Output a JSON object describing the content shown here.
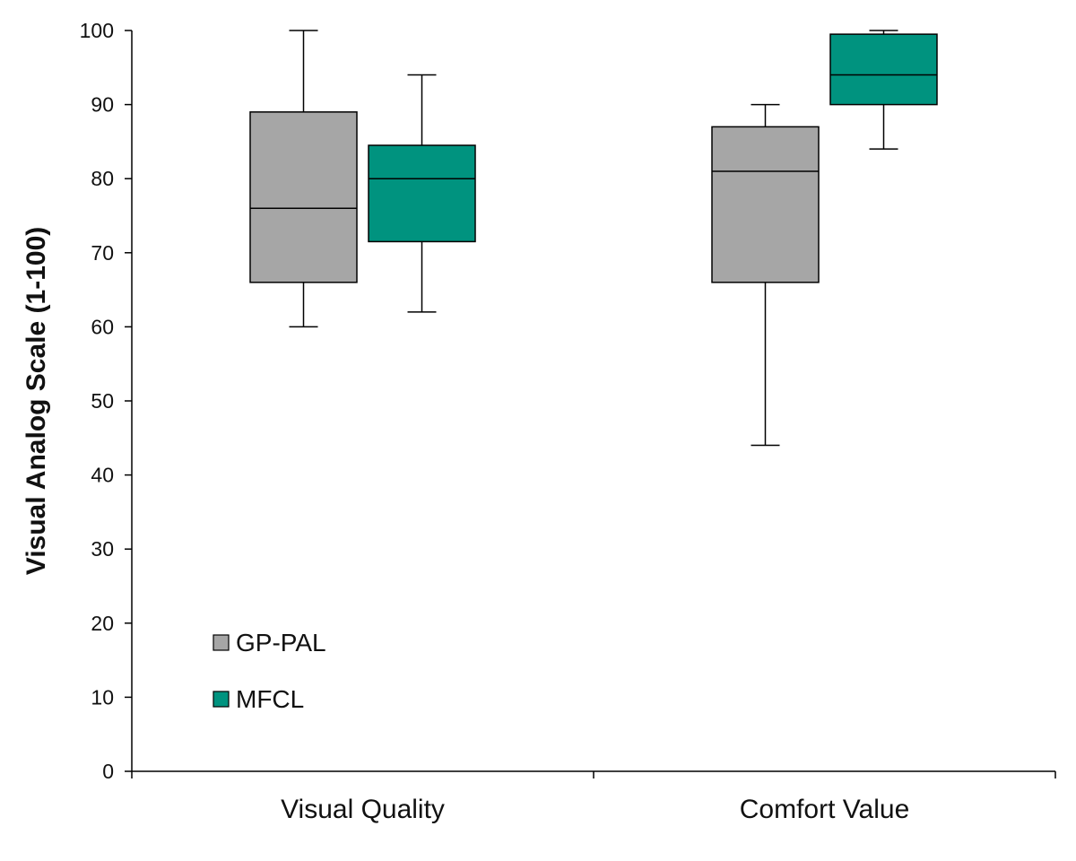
{
  "chart_data": {
    "type": "boxplot",
    "title": "",
    "xlabel": "",
    "ylabel": "Visual Analog Scale (1-100)",
    "ylim": [
      0,
      100
    ],
    "yticks": [
      0,
      10,
      20,
      30,
      40,
      50,
      60,
      70,
      80,
      90,
      100
    ],
    "grid": false,
    "legend_position": "bottom-left",
    "categories": [
      "Visual Quality",
      "Comfort Value"
    ],
    "series": [
      {
        "name": "GP-PAL",
        "color": "#a6a6a6",
        "boxes": [
          {
            "min": 60,
            "q1": 66,
            "median": 76,
            "q3": 89,
            "max": 100
          },
          {
            "min": 44,
            "q1": 66,
            "median": 81,
            "q3": 87,
            "max": 90
          }
        ]
      },
      {
        "name": "MFCL",
        "color": "#00937f",
        "boxes": [
          {
            "min": 62,
            "q1": 71.5,
            "median": 80,
            "q3": 84.5,
            "max": 94
          },
          {
            "min": 84,
            "q1": 90,
            "median": 94,
            "q3": 99.5,
            "max": 100
          }
        ]
      }
    ]
  }
}
